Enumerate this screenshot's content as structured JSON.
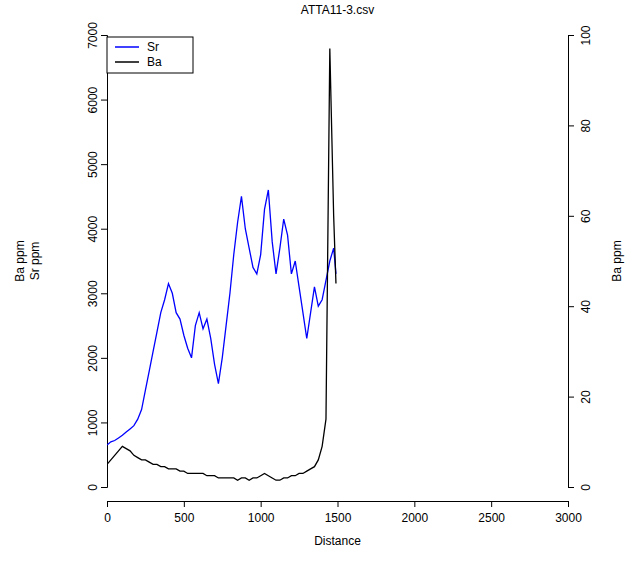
{
  "chart_data": {
    "type": "line",
    "title": "ATTA11-3.csv",
    "xlabel": "Distance",
    "ylabel": [
      "Ba ppm",
      "Sr ppm"
    ],
    "y2label": "Ba ppm",
    "legend": "top-left",
    "xlim": [
      0,
      3000
    ],
    "xticks": [
      0,
      500,
      1000,
      1500,
      2000,
      2500,
      3000
    ],
    "ylim": [
      0,
      7000
    ],
    "yticks": [
      0,
      1000,
      2000,
      3000,
      4000,
      5000,
      6000,
      7000
    ],
    "y2lim": [
      0,
      100
    ],
    "y2ticks": [
      0,
      20,
      40,
      60,
      80,
      100
    ],
    "x": [
      0,
      25,
      50,
      75,
      100,
      125,
      150,
      175,
      200,
      225,
      250,
      275,
      300,
      325,
      350,
      375,
      400,
      425,
      450,
      475,
      500,
      525,
      550,
      575,
      600,
      625,
      650,
      675,
      700,
      725,
      750,
      775,
      800,
      825,
      850,
      875,
      900,
      925,
      950,
      975,
      1000,
      1025,
      1050,
      1075,
      1100,
      1125,
      1150,
      1175,
      1200,
      1225,
      1250,
      1275,
      1300,
      1325,
      1350,
      1375,
      1400,
      1425,
      1450,
      1475,
      1490
    ],
    "series": [
      {
        "name": "Sr",
        "color": "#0000ff",
        "values": [
          650,
          700,
          720,
          760,
          800,
          850,
          900,
          950,
          1050,
          1200,
          1500,
          1800,
          2100,
          2400,
          2700,
          2900,
          3150,
          3000,
          2700,
          2600,
          2350,
          2150,
          2000,
          2500,
          2700,
          2450,
          2600,
          2300,
          1900,
          1600,
          2000,
          2500,
          3000,
          3600,
          4100,
          4500,
          4000,
          3700,
          3400,
          3300,
          3600,
          4300,
          4600,
          3800,
          3300,
          3700,
          4150,
          3900,
          3300,
          3500,
          3100,
          2700,
          2300,
          2700,
          3100,
          2800,
          2900,
          3200,
          3500,
          3700,
          3300
        ]
      },
      {
        "name": "Ba",
        "color": "#000000",
        "axis": "y2",
        "values": [
          5,
          6,
          7,
          8,
          9,
          8.5,
          8,
          7,
          6.5,
          6,
          6,
          5.5,
          5,
          5,
          4.5,
          4.5,
          4,
          4,
          4,
          3.5,
          3.5,
          3,
          3,
          3,
          3,
          3,
          2.5,
          2.5,
          2.5,
          2,
          2,
          2,
          2,
          2,
          1.5,
          2,
          2,
          1.5,
          2,
          2,
          2.5,
          3,
          2.5,
          2,
          1.5,
          1.5,
          2,
          2,
          2.5,
          2.5,
          3,
          3,
          3.5,
          4,
          4.5,
          6,
          9,
          15,
          97,
          60,
          45
        ]
      }
    ]
  }
}
